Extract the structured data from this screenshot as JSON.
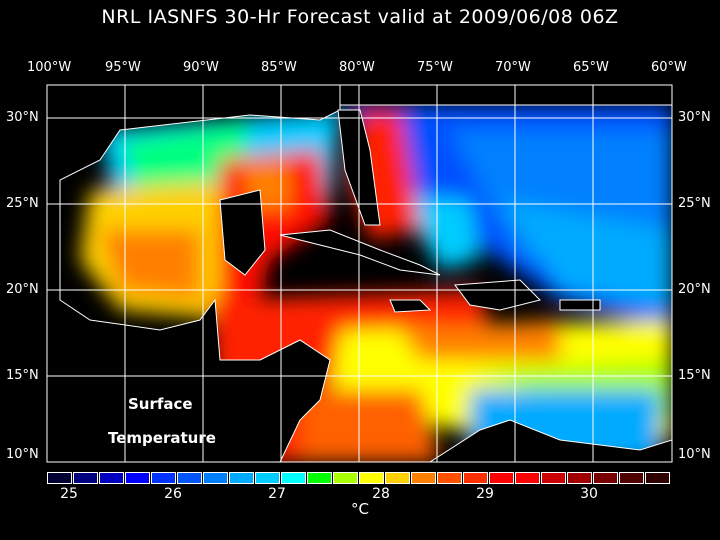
{
  "title": "NRL IASNFS  30-Hr Forecast valid at 2009/06/08 06Z",
  "lon_labels": [
    "100°W",
    "95°W",
    "90°W",
    "85°W",
    "80°W",
    "75°W",
    "70°W",
    "65°W",
    "60°W"
  ],
  "lat_labels": [
    "30°N",
    "25°N",
    "20°N",
    "15°N",
    "10°N"
  ],
  "annotation": {
    "line1": "Surface",
    "line2": "Temperature"
  },
  "colorbar": {
    "colors": [
      "#000033",
      "#000080",
      "#0000c0",
      "#0000ff",
      "#0033ff",
      "#0055ff",
      "#0080ff",
      "#00aaff",
      "#00ccff",
      "#00ffff",
      "#00ff00",
      "#aaff00",
      "#ffff00",
      "#ffd000",
      "#ff8000",
      "#ff5000",
      "#ff3000",
      "#ff0000",
      "#ff0000",
      "#cc0000",
      "#a00000",
      "#780000",
      "#500000",
      "#300000"
    ],
    "tick_labels": [
      "25",
      "26",
      "27",
      "28",
      "29",
      "30"
    ],
    "unit": "°C"
  }
}
